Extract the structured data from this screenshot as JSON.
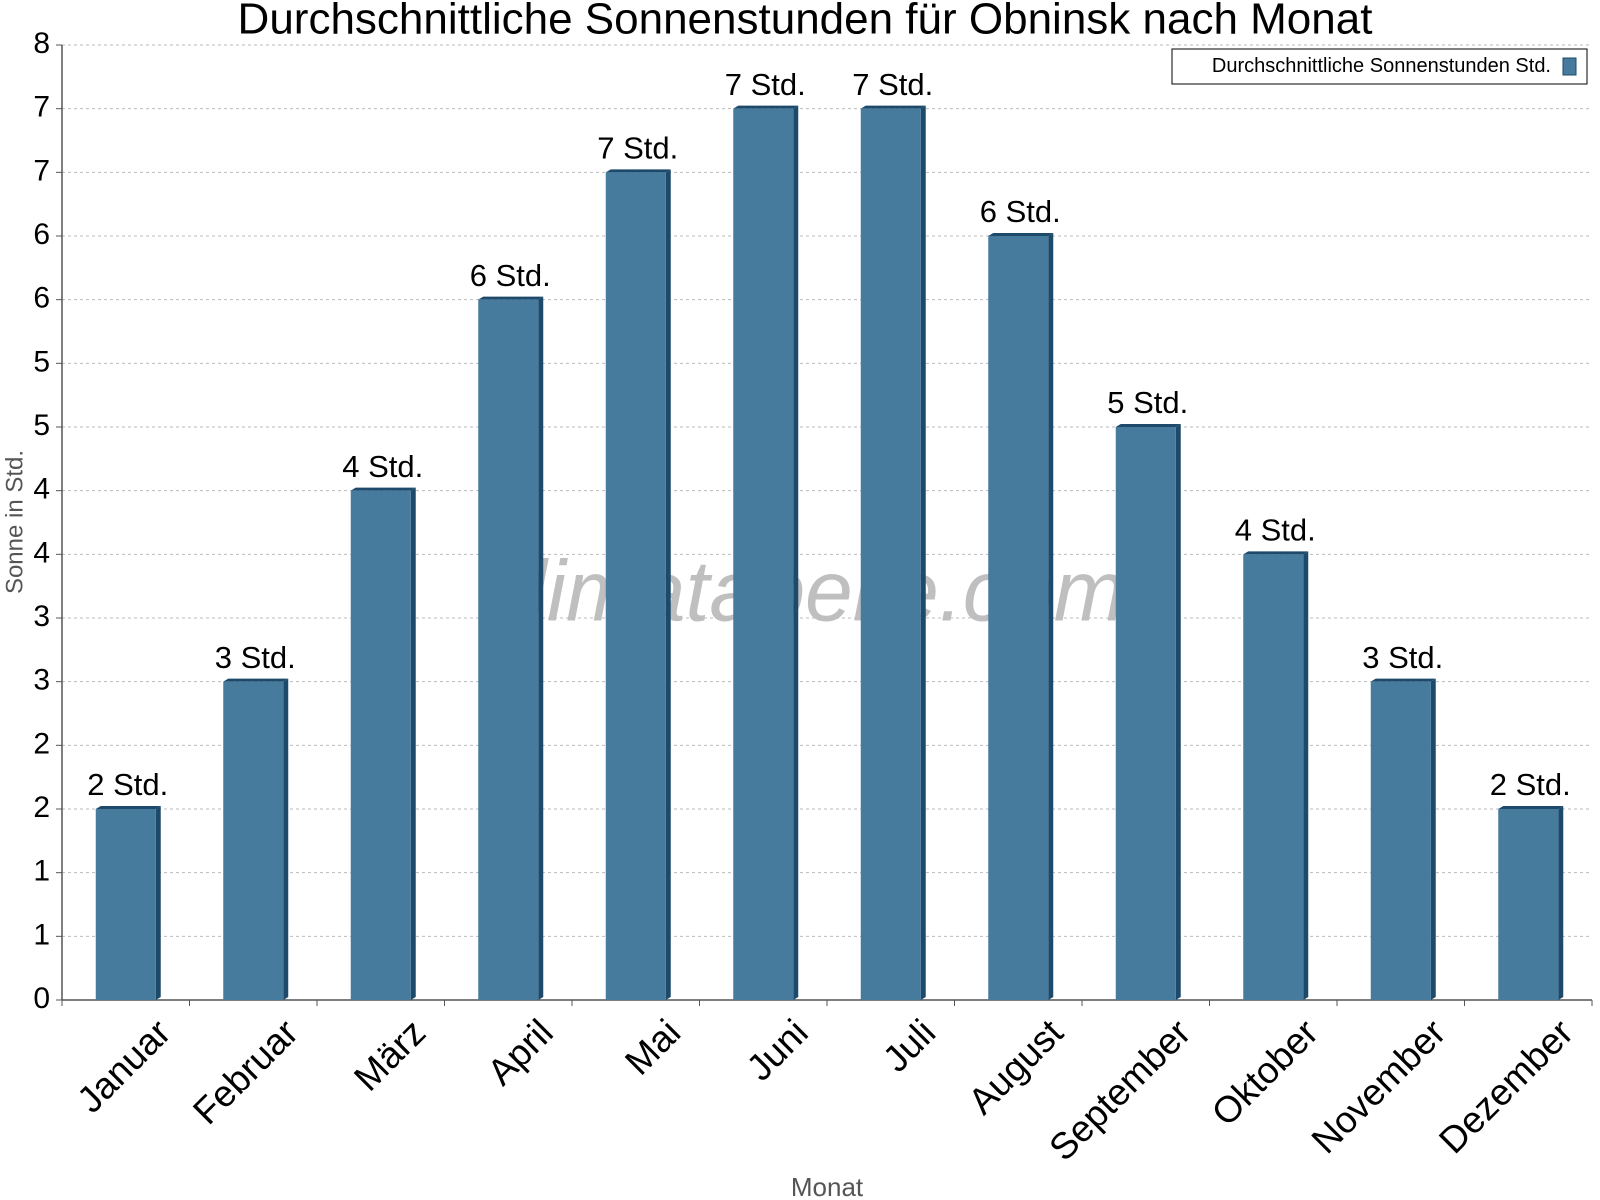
{
  "chart_data": {
    "type": "bar",
    "title": "Durchschnittliche Sonnenstunden für Obninsk nach Monat",
    "x_label": "Monat",
    "y_label": "Sonne in Std.",
    "watermark": "klimatabelle.com",
    "categories": [
      "Januar",
      "Februar",
      "März",
      "April",
      "Mai",
      "Juni",
      "Juli",
      "August",
      "September",
      "Oktober",
      "November",
      "Dezember"
    ],
    "series": [
      {
        "name": "Durchschnittliche Sonnenstunden Std.",
        "color": "#467b9e",
        "values": [
          1.5,
          2.5,
          4.0,
          5.5,
          6.5,
          7.0,
          7.0,
          6.0,
          4.5,
          3.5,
          2.5,
          1.5
        ],
        "value_labels": [
          "2 Std.",
          "3 Std.",
          "4 Std.",
          "6 Std.",
          "7 Std.",
          "7 Std.",
          "7 Std.",
          "6 Std.",
          "5 Std.",
          "4 Std.",
          "3 Std.",
          "2 Std."
        ]
      }
    ],
    "ylim": [
      0,
      7.5
    ],
    "yticks": [
      0,
      {
        "value": 0.5,
        "label": "1"
      },
      1,
      {
        "value": 1.5,
        "label": "2"
      },
      2,
      {
        "value": 2.5,
        "label": "3"
      },
      3,
      {
        "value": 3.5,
        "label": "4"
      },
      4,
      {
        "value": 4.5,
        "label": "5"
      },
      5,
      {
        "value": 5.5,
        "label": "6"
      },
      6,
      {
        "value": 6.5,
        "label": "7"
      },
      7,
      {
        "value": 7.5,
        "label": "8"
      }
    ],
    "grid": true,
    "legend": "top-right"
  }
}
